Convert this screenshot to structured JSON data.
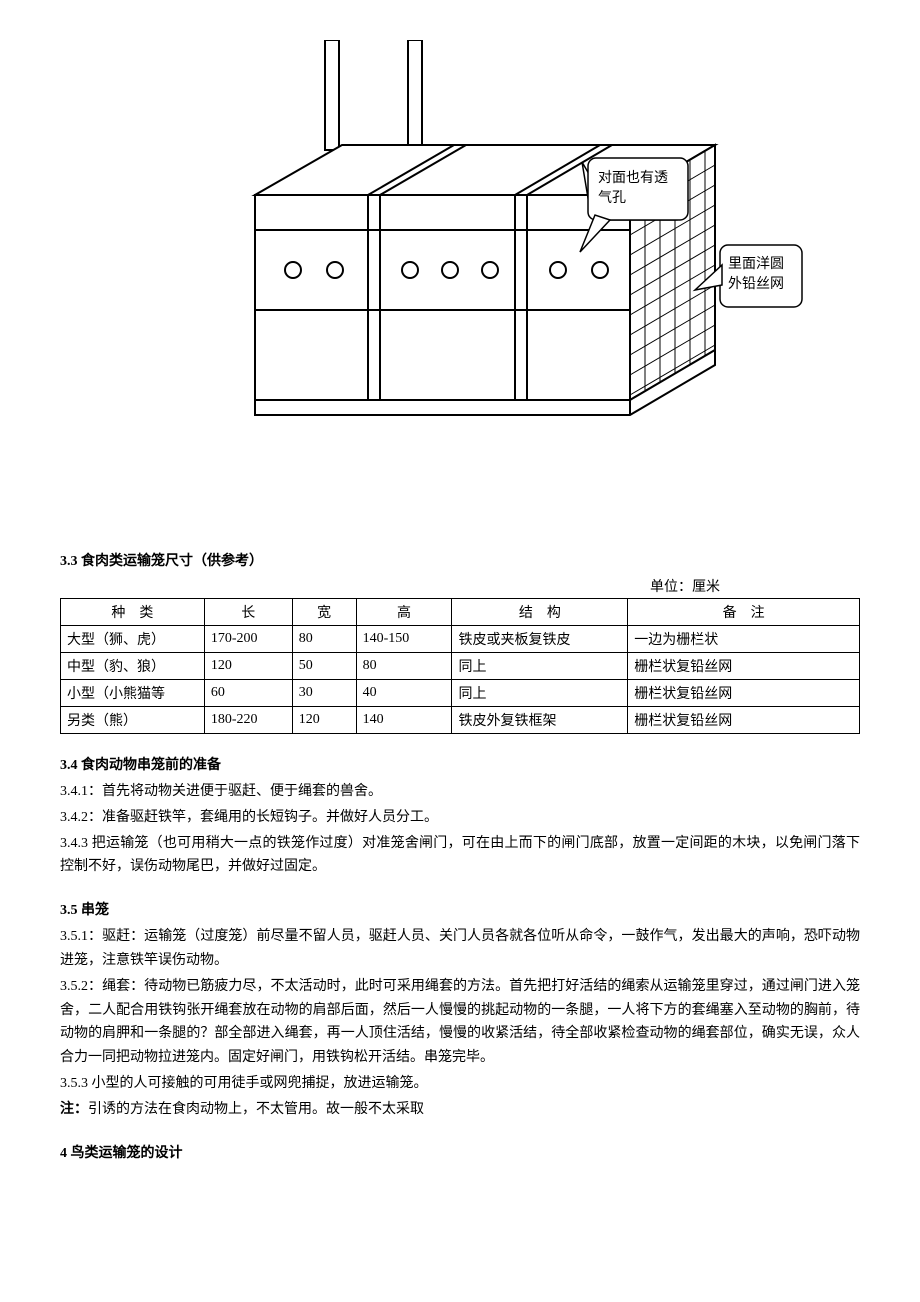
{
  "diagram": {
    "callout1_line1": "对面也有透",
    "callout1_line2": "气孔",
    "callout2_line1": "里面洋圆",
    "callout2_line2": "外铅丝网",
    "stroke_color": "#000000",
    "fill_color": "#ffffff",
    "callout_border_radius": 6,
    "callout_font_size": 14
  },
  "sections": {
    "s33_title": "3.3 食肉类运输笼尺寸（供参考）",
    "unit_label": "单位：厘米",
    "s34_title": "3.4 食肉动物串笼前的准备",
    "s34_p1": "3.4.1：首先将动物关进便于驱赶、便于绳套的兽舍。",
    "s34_p2": "3.4.2：准备驱赶铁竿，套绳用的长短钩子。并做好人员分工。",
    "s34_p3": "3.4.3 把运输笼（也可用稍大一点的铁笼作过度）对准笼舍闸门，可在由上而下的闸门底部，放置一定间距的木块，以免闸门落下控制不好，误伤动物尾巴，并做好过固定。",
    "s35_title": "3.5 串笼",
    "s35_p1": "3.5.1：驱赶：运输笼（过度笼）前尽量不留人员，驱赶人员、关门人员各就各位听从命令，一鼓作气，发出最大的声响，恐吓动物进笼，注意铁竿误伤动物。",
    "s35_p2": "3.5.2：绳套：待动物已筋疲力尽，不太活动时，此时可采用绳套的方法。首先把打好活结的绳索从运输笼里穿过，通过闸门进入笼舍，二人配合用铁钩张开绳套放在动物的肩部后面，然后一人慢慢的挑起动物的一条腿，一人将下方的套绳塞入至动物的胸前，待动物的肩胛和一条腿的？部全部进入绳套，再一人顶住活结，慢慢的收紧活结，待全部收紧检查动物的绳套部位，确实无误，众人合力一同把动物拉进笼内。固定好闸门，用铁钩松开活结。串笼完毕。",
    "s35_p3": "3.5.3 小型的人可接触的可用徒手或网兜捕捉，放进运输笼。",
    "note_label": "注：",
    "note_text": "引诱的方法在食肉动物上，不太管用。故一般不太采取",
    "s4_title": "4 鸟类运输笼的设计"
  },
  "table": {
    "headers": {
      "type": "种　类",
      "length": "长",
      "width": "宽",
      "height": "高",
      "structure": "结　构",
      "note": "备　注"
    },
    "rows": [
      {
        "type": "大型（狮、虎）",
        "length": "170-200",
        "width": "80",
        "height": "140-150",
        "structure": "铁皮或夹板复铁皮",
        "note": "一边为栅栏状"
      },
      {
        "type": "中型（豹、狼）",
        "length": "120",
        "width": "50",
        "height": "80",
        "structure": "同上",
        "note": "栅栏状复铅丝网"
      },
      {
        "type": "小型（小熊猫等",
        "length": "60",
        "width": "30",
        "height": "40",
        "structure": "同上",
        "note": "栅栏状复铅丝网"
      },
      {
        "type": "另类（熊）",
        "length": "180-220",
        "width": "120",
        "height": "140",
        "structure": "铁皮外复铁框架",
        "note": "栅栏状复铅丝网"
      }
    ]
  }
}
